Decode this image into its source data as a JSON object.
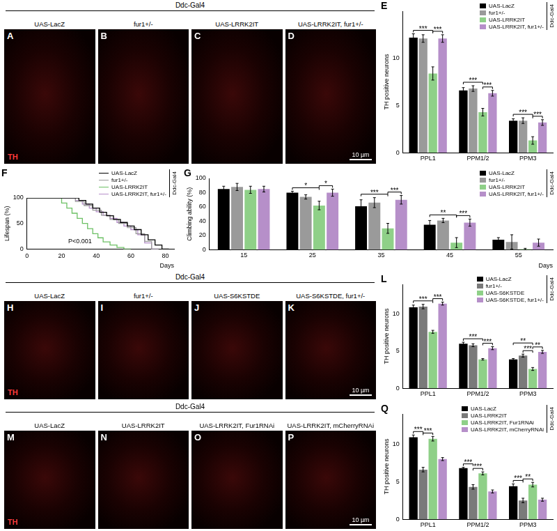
{
  "chart_data": [
    {
      "type": "bar",
      "title": "E",
      "subtitle": "Ddc-Gal4",
      "y_label": "TH positive neurons",
      "categories": [
        "PPL1",
        "PPM1/2",
        "PPM3"
      ],
      "series": [
        {
          "name": "UAS-LacZ",
          "color": "#000000",
          "values": [
            12.2,
            6.6,
            3.4
          ],
          "errors": [
            0.4,
            0.3,
            0.2
          ]
        },
        {
          "name": "fur1+/-",
          "color": "#9a9a9a",
          "values": [
            12.1,
            6.8,
            3.4
          ],
          "errors": [
            0.4,
            0.3,
            0.3
          ]
        },
        {
          "name": "UAS-LRRK2IT",
          "color": "#8fd088",
          "values": [
            8.4,
            4.3,
            1.3
          ],
          "errors": [
            0.7,
            0.4,
            0.4
          ]
        },
        {
          "name": "UAS-LRRK2IT, fur1+/-",
          "color": "#b68fc9",
          "values": [
            12.1,
            6.3,
            3.2
          ],
          "errors": [
            0.4,
            0.3,
            0.3
          ]
        }
      ],
      "ylim": [
        0,
        15
      ],
      "yticks": [
        0,
        5,
        10
      ],
      "grid": false,
      "legend": "upper right",
      "annotations": [
        {
          "text": "***",
          "category": "PPL1",
          "between": [
            "UAS-LacZ",
            "UAS-LRRK2IT"
          ]
        },
        {
          "text": "***",
          "category": "PPL1",
          "between": [
            "UAS-LRRK2IT",
            "UAS-LRRK2IT, fur1+/-"
          ]
        },
        {
          "text": "***",
          "category": "PPM1/2",
          "between": [
            "UAS-LacZ",
            "UAS-LRRK2IT"
          ]
        },
        {
          "text": "***",
          "category": "PPM1/2",
          "between": [
            "UAS-LRRK2IT",
            "UAS-LRRK2IT, fur1+/-"
          ]
        },
        {
          "text": "***",
          "category": "PPM3",
          "between": [
            "UAS-LacZ",
            "UAS-LRRK2IT"
          ]
        },
        {
          "text": "***",
          "category": "PPM3",
          "between": [
            "UAS-LRRK2IT",
            "UAS-LRRK2IT, fur1+/-"
          ]
        }
      ]
    },
    {
      "type": "line",
      "title": "F",
      "subtitle": "Ddc-Gal4",
      "y_label": "Lifespan (%)",
      "x_label": "Days",
      "series": [
        {
          "name": "UAS-LacZ",
          "color": "#000000",
          "line_style": "steps",
          "x": [
            0,
            30,
            34,
            38,
            42,
            46,
            50,
            54,
            58,
            62,
            66,
            70,
            74,
            78,
            82
          ],
          "values": [
            100,
            100,
            95,
            88,
            80,
            72,
            65,
            58,
            52,
            45,
            38,
            28,
            18,
            8,
            0
          ]
        },
        {
          "name": "fur1+/-",
          "color": "#9a9a9a",
          "line_style": "steps",
          "x": [
            0,
            28,
            33,
            38,
            43,
            48,
            53,
            58,
            63,
            68,
            72,
            76
          ],
          "values": [
            100,
            100,
            93,
            85,
            76,
            66,
            58,
            50,
            42,
            30,
            15,
            0
          ]
        },
        {
          "name": "UAS-LRRK2IT",
          "color": "#6cc064",
          "line_style": "steps",
          "x": [
            0,
            20,
            23,
            26,
            29,
            32,
            35,
            38,
            41,
            44,
            48,
            52,
            56,
            60
          ],
          "values": [
            100,
            100,
            90,
            80,
            70,
            60,
            50,
            40,
            30,
            22,
            14,
            8,
            3,
            0
          ]
        },
        {
          "name": "UAS-LRRK2IT, fur1+/-",
          "color": "#b68fc9",
          "line_style": "steps",
          "x": [
            0,
            28,
            32,
            36,
            40,
            44,
            48,
            52,
            56,
            60,
            64,
            68,
            72,
            76
          ],
          "values": [
            100,
            100,
            95,
            88,
            80,
            73,
            66,
            60,
            52,
            45,
            38,
            28,
            12,
            0
          ]
        }
      ],
      "xlim": [
        0,
        85
      ],
      "xticks": [
        0,
        20,
        40,
        60,
        80
      ],
      "ylim": [
        0,
        100
      ],
      "yticks": [
        0,
        50,
        100
      ],
      "grid": false,
      "legend": "upper right",
      "annotations": [
        {
          "text": "P<0.001"
        }
      ]
    },
    {
      "type": "bar",
      "title": "G",
      "subtitle": "Ddc-Gal4",
      "y_label": "Climbing ability (%)",
      "x_label": "Days",
      "categories": [
        "15",
        "25",
        "35",
        "45",
        "55"
      ],
      "series": [
        {
          "name": "UAS-LacZ",
          "color": "#000000",
          "values": [
            85,
            80,
            61,
            35,
            14
          ],
          "errors": [
            4,
            2,
            9,
            6,
            3
          ]
        },
        {
          "name": "fur1+/-",
          "color": "#9a9a9a",
          "values": [
            88,
            74,
            66,
            41,
            11
          ],
          "errors": [
            5,
            3,
            7,
            3,
            10
          ]
        },
        {
          "name": "UAS-LRRK2IT",
          "color": "#8fd088",
          "values": [
            84,
            62,
            30,
            10,
            1
          ],
          "errors": [
            5,
            6,
            7,
            7,
            1
          ]
        },
        {
          "name": "UAS-LRRK2IT, fur1+/-",
          "color": "#b68fc9",
          "values": [
            85,
            80,
            70,
            38,
            10
          ],
          "errors": [
            4,
            5,
            6,
            5,
            5
          ]
        }
      ],
      "ylim": [
        0,
        100
      ],
      "yticks": [
        0,
        20,
        40,
        60,
        80,
        100
      ],
      "grid": false,
      "legend": "upper right",
      "annotations": [
        {
          "text": "*",
          "category": "25",
          "between": [
            "UAS-LacZ",
            "UAS-LRRK2IT"
          ]
        },
        {
          "text": "*",
          "category": "25",
          "between": [
            "UAS-LRRK2IT",
            "UAS-LRRK2IT, fur1+/-"
          ]
        },
        {
          "text": "***",
          "category": "35",
          "between": [
            "UAS-LacZ",
            "UAS-LRRK2IT"
          ]
        },
        {
          "text": "***",
          "category": "35",
          "between": [
            "UAS-LRRK2IT",
            "UAS-LRRK2IT, fur1+/-"
          ]
        },
        {
          "text": "**",
          "category": "45",
          "between": [
            "UAS-LacZ",
            "UAS-LRRK2IT"
          ]
        },
        {
          "text": "***",
          "category": "45",
          "between": [
            "UAS-LRRK2IT",
            "UAS-LRRK2IT, fur1+/-"
          ]
        }
      ]
    },
    {
      "type": "bar",
      "title": "L",
      "subtitle": "Ddc-Gal4",
      "y_label": "TH positive neurons",
      "categories": [
        "PPL1",
        "PPM1/2",
        "PPM3"
      ],
      "series": [
        {
          "name": "UAS-LacZ",
          "color": "#000000",
          "values": [
            10.9,
            6.0,
            3.9
          ],
          "errors": [
            0.3,
            0.2,
            0.1
          ]
        },
        {
          "name": "fur1+/-",
          "color": "#7a7a7a",
          "values": [
            11.0,
            5.8,
            4.4
          ],
          "errors": [
            0.3,
            0.2,
            0.2
          ]
        },
        {
          "name": "UAS-S6KSTDE",
          "color": "#8fd088",
          "values": [
            7.6,
            3.9,
            2.6
          ],
          "errors": [
            0.2,
            0.1,
            0.2
          ]
        },
        {
          "name": "UAS-S6KSTDE, fur1+/-",
          "color": "#b68fc9",
          "values": [
            11.4,
            5.4,
            4.9
          ],
          "errors": [
            0.2,
            0.2,
            0.2
          ]
        }
      ],
      "ylim": [
        0,
        14
      ],
      "yticks": [
        0,
        5,
        10
      ],
      "grid": false,
      "legend": "upper right",
      "annotations": [
        {
          "text": "***",
          "category": "PPL1",
          "between": [
            "UAS-LacZ",
            "UAS-S6KSTDE"
          ]
        },
        {
          "text": "***",
          "category": "PPL1",
          "between": [
            "UAS-S6KSTDE",
            "UAS-S6KSTDE, fur1+/-"
          ]
        },
        {
          "text": "***",
          "category": "PPM1/2",
          "between": [
            "UAS-LacZ",
            "UAS-S6KSTDE"
          ]
        },
        {
          "text": "***",
          "category": "PPM1/2",
          "between": [
            "UAS-S6KSTDE",
            "UAS-S6KSTDE, fur1+/-"
          ]
        },
        {
          "text": "**",
          "category": "PPM3",
          "between": [
            "UAS-LacZ",
            "UAS-S6KSTDE"
          ]
        },
        {
          "text": "***",
          "category": "PPM3",
          "between": [
            "fur1+/-",
            "UAS-S6KSTDE"
          ]
        },
        {
          "text": "**",
          "category": "PPM3",
          "between": [
            "UAS-S6KSTDE",
            "UAS-S6KSTDE, fur1+/-"
          ]
        }
      ]
    },
    {
      "type": "bar",
      "title": "Q",
      "subtitle": "Ddc-Gal4",
      "y_label": "TH positive neurons",
      "categories": [
        "PPL1",
        "PPM1/2",
        "PPM3"
      ],
      "series": [
        {
          "name": "UAS-LacZ",
          "color": "#000000",
          "values": [
            10.9,
            6.8,
            4.4
          ],
          "errors": [
            0.3,
            0.1,
            0.3
          ]
        },
        {
          "name": "UAS-LRRK2IT",
          "color": "#7a7a7a",
          "values": [
            6.6,
            4.3,
            2.5
          ],
          "errors": [
            0.3,
            0.3,
            0.3
          ]
        },
        {
          "name": "UAS-LRRK2IT, Fur1RNAi",
          "color": "#8fd088",
          "values": [
            10.7,
            6.1,
            4.6
          ],
          "errors": [
            0.3,
            0.2,
            0.3
          ]
        },
        {
          "name": "UAS-LRRK2IT, mCherryRNAi",
          "color": "#b68fc9",
          "values": [
            8.0,
            3.7,
            2.6
          ],
          "errors": [
            0.2,
            0.2,
            0.2
          ]
        }
      ],
      "ylim": [
        0,
        14
      ],
      "yticks": [
        0,
        5,
        10
      ],
      "grid": false,
      "legend": "upper right",
      "annotations": [
        {
          "text": "***",
          "category": "PPL1",
          "between": [
            "UAS-LacZ",
            "UAS-LRRK2IT"
          ]
        },
        {
          "text": "***",
          "category": "PPL1",
          "between": [
            "UAS-LRRK2IT",
            "UAS-LRRK2IT, Fur1RNAi"
          ]
        },
        {
          "text": "***",
          "category": "PPM1/2",
          "between": [
            "UAS-LacZ",
            "UAS-LRRK2IT"
          ]
        },
        {
          "text": "***",
          "category": "PPM1/2",
          "between": [
            "UAS-LRRK2IT",
            "UAS-LRRK2IT, Fur1RNAi"
          ]
        },
        {
          "text": "***",
          "category": "PPM3",
          "between": [
            "UAS-LacZ",
            "UAS-LRRK2IT"
          ]
        },
        {
          "text": "**",
          "category": "PPM3",
          "between": [
            "UAS-LRRK2IT",
            "UAS-LRRK2IT, Fur1RNAi"
          ]
        }
      ]
    }
  ],
  "image_panels": [
    {
      "group": "Ddc-Gal4",
      "stain": "TH",
      "scale_bar": "10 µm",
      "panels": [
        {
          "letter": "A",
          "label": "UAS-LacZ"
        },
        {
          "letter": "B",
          "label": "fur1+/-"
        },
        {
          "letter": "C",
          "label": "UAS-LRRK2IT"
        },
        {
          "letter": "D",
          "label": "UAS-LRRK2IT, fur1+/-"
        }
      ]
    },
    {
      "group": "Ddc-Gal4",
      "stain": "TH",
      "scale_bar": "10 µm",
      "panels": [
        {
          "letter": "H",
          "label": "UAS-LacZ"
        },
        {
          "letter": "I",
          "label": "fur1+/-"
        },
        {
          "letter": "J",
          "label": "UAS-S6KSTDE"
        },
        {
          "letter": "K",
          "label": "UAS-S6KSTDE, fur1+/-"
        }
      ]
    },
    {
      "group": "Ddc-Gal4",
      "stain": "TH",
      "scale_bar": "10 µm",
      "panels": [
        {
          "letter": "M",
          "label": "UAS-LacZ"
        },
        {
          "letter": "N",
          "label": "UAS-LRRK2IT"
        },
        {
          "letter": "O",
          "label": "UAS-LRRK2IT, Fur1RNAi"
        },
        {
          "letter": "P",
          "label": "UAS-LRRK2IT, mCherryRNAi"
        }
      ]
    }
  ]
}
